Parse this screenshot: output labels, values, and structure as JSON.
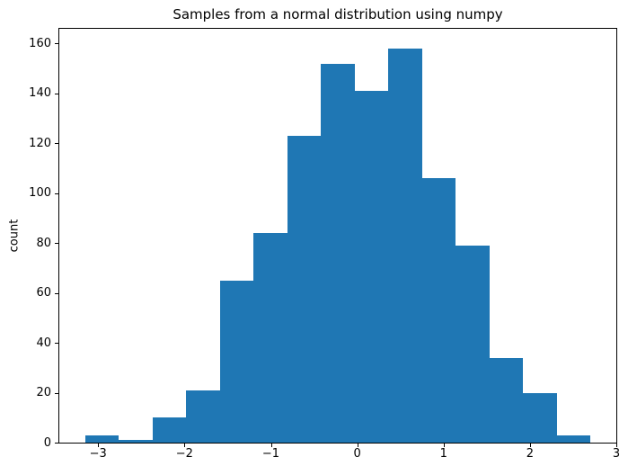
{
  "figure": {
    "background_color": "#ffffff",
    "axis_color": "#000000",
    "text_color": "#000000"
  },
  "chart_data": {
    "type": "bar",
    "subtype": "histogram",
    "title": "Samples from a normal distribution using numpy",
    "xlabel": "",
    "ylabel": "count",
    "bar_color": "#1f77b4",
    "bin_edges": [
      -3.15,
      -2.76,
      -2.37,
      -1.98,
      -1.59,
      -1.2,
      -0.81,
      -0.42,
      -0.03,
      0.36,
      0.75,
      1.14,
      1.53,
      1.92,
      2.31,
      2.7
    ],
    "counts": [
      3,
      1,
      10,
      21,
      65,
      84,
      123,
      152,
      141,
      158,
      106,
      79,
      34,
      20,
      3
    ],
    "xlim": [
      -3.45,
      3.0
    ],
    "ylim": [
      0,
      165.9
    ],
    "xticks": [
      -3,
      -2,
      -1,
      0,
      1,
      2,
      3
    ],
    "xtick_labels": [
      "−3",
      "−2",
      "−1",
      "0",
      "1",
      "2",
      "3"
    ],
    "yticks": [
      0,
      20,
      40,
      60,
      80,
      100,
      120,
      140,
      160
    ],
    "ytick_labels": [
      "0",
      "20",
      "40",
      "60",
      "80",
      "100",
      "120",
      "140",
      "160"
    ],
    "grid": false,
    "legend": null
  }
}
